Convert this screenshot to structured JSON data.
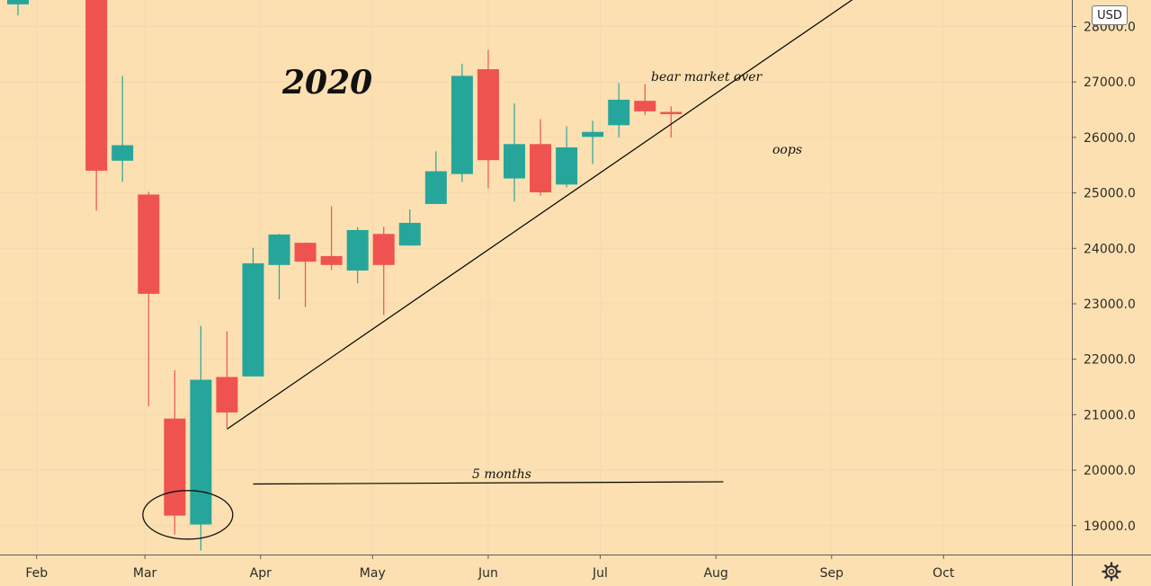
{
  "chart_data": {
    "type": "candlestick",
    "currency": "USD",
    "year_label": "2020",
    "annotations": {
      "peak": "bear market over",
      "break": "oops",
      "duration": "5 months"
    },
    "x_ticks": [
      "Feb",
      "Mar",
      "Apr",
      "May",
      "Jun",
      "Jul",
      "Aug",
      "Sep",
      "Oct"
    ],
    "y_ticks": [
      19000.0,
      20000.0,
      21000.0,
      22000.0,
      23000.0,
      24000.0,
      25000.0,
      26000.0,
      27000.0
    ],
    "y_tick_labels": [
      "19000.0",
      "20000.0",
      "21000.0",
      "22000.0",
      "23000.0",
      "24000.0",
      "25000.0",
      "26000.0",
      "27000.0"
    ],
    "y_cut_label": "28000.0",
    "ylim": [
      18500,
      28600
    ],
    "x_range": [
      "2020-01-27",
      "2020-10-19"
    ],
    "grid": true,
    "candles": [
      {
        "week": "2020-01-27",
        "open": 28400,
        "high": 28650,
        "low": 28200,
        "close": 28550
      },
      {
        "week": "2020-02-17",
        "open": 29100,
        "high": 29300,
        "low": 24680,
        "close": 25400
      },
      {
        "week": "2020-02-24",
        "open": 25580,
        "high": 27110,
        "low": 25200,
        "close": 25860
      },
      {
        "week": "2020-03-02",
        "open": 24970,
        "high": 25020,
        "low": 21150,
        "close": 23180
      },
      {
        "week": "2020-03-09",
        "open": 20930,
        "high": 21800,
        "low": 18840,
        "close": 19180
      },
      {
        "week": "2020-03-16",
        "open": 19020,
        "high": 22600,
        "low": 18550,
        "close": 21630
      },
      {
        "week": "2020-03-23",
        "open": 21680,
        "high": 22500,
        "low": 20760,
        "close": 21040
      },
      {
        "week": "2020-03-30",
        "open": 21690,
        "high": 24010,
        "low": 21690,
        "close": 23730
      },
      {
        "week": "2020-04-06",
        "open": 23700,
        "high": 24260,
        "low": 23080,
        "close": 24250
      },
      {
        "week": "2020-04-13",
        "open": 24100,
        "high": 24100,
        "low": 22940,
        "close": 23760
      },
      {
        "week": "2020-04-20",
        "open": 23860,
        "high": 24760,
        "low": 23610,
        "close": 23700
      },
      {
        "week": "2020-04-27",
        "open": 23600,
        "high": 24380,
        "low": 23370,
        "close": 24330
      },
      {
        "week": "2020-05-04",
        "open": 24260,
        "high": 24390,
        "low": 22800,
        "close": 23700
      },
      {
        "week": "2020-05-11",
        "open": 24050,
        "high": 24700,
        "low": 24050,
        "close": 24460
      },
      {
        "week": "2020-05-18",
        "open": 24800,
        "high": 25750,
        "low": 24800,
        "close": 25390
      },
      {
        "week": "2020-05-25",
        "open": 25340,
        "high": 27330,
        "low": 25200,
        "close": 27110
      },
      {
        "week": "2020-06-01",
        "open": 27230,
        "high": 27580,
        "low": 25080,
        "close": 25590
      },
      {
        "week": "2020-06-08",
        "open": 25260,
        "high": 26610,
        "low": 24840,
        "close": 25880
      },
      {
        "week": "2020-06-15",
        "open": 25880,
        "high": 26330,
        "low": 24950,
        "close": 25010
      },
      {
        "week": "2020-06-22",
        "open": 25150,
        "high": 26200,
        "low": 25100,
        "close": 25820
      },
      {
        "week": "2020-06-29",
        "open": 26010,
        "high": 26300,
        "low": 25520,
        "close": 26100
      },
      {
        "week": "2020-07-06",
        "open": 26220,
        "high": 26980,
        "low": 26000,
        "close": 26680
      },
      {
        "week": "2020-07-13",
        "open": 26660,
        "high": 26960,
        "low": 26400,
        "close": 26470
      },
      {
        "week": "2020-07-20",
        "open": 26460,
        "high": 26560,
        "low": 26000,
        "close": 26420
      }
    ],
    "trendline": {
      "from": {
        "date": "2020-03-23",
        "value": 20740
      },
      "to": {
        "date": "2020-09-16",
        "value": 28920
      }
    },
    "duration_line": {
      "from": {
        "date": "2020-03-30",
        "value": 19750
      },
      "to": {
        "date": "2020-08-03",
        "value": 19790
      }
    },
    "circled_weeks": [
      "2020-03-09",
      "2020-03-16"
    ],
    "colors": {
      "background": "#fde0b1",
      "up": "#26a69a",
      "down": "#ef5350",
      "grid": "#f1d9b0",
      "axis_line": "#5c5c5c",
      "text": "#2b2b2b",
      "trendline": "#000000"
    }
  },
  "icons": {
    "settings": "gear-icon"
  }
}
